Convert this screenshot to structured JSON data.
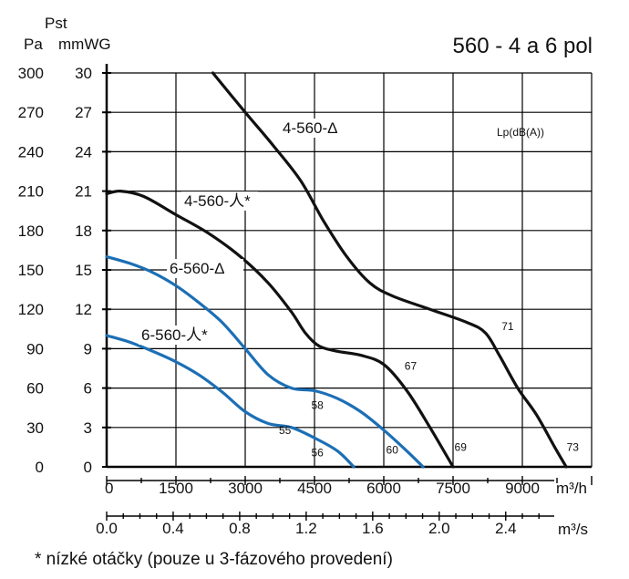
{
  "chart_data": {
    "type": "line",
    "title": "560 - 4 a 6 pol",
    "y_label": "Pst",
    "y_unit_left": "Pa",
    "y_unit_right": "mmWG",
    "x_unit_top": "m³/h",
    "x_unit_bottom": "m³/s",
    "lp_label": "Lp(dB(A))",
    "footnote": "* nízké otáčky (pouze u 3-fázového provedení)",
    "grid": true,
    "xlim": [
      0,
      10500
    ],
    "ylim": [
      0,
      300
    ],
    "y_ticks_pa": [
      "300",
      "270",
      "240",
      "210",
      "180",
      "150",
      "120",
      "90",
      "60",
      "30",
      "0"
    ],
    "y_ticks_mmwg": [
      "30",
      "27",
      "24",
      "21",
      "18",
      "15",
      "12",
      "9",
      "6",
      "3",
      "0"
    ],
    "x_ticks_m3h": [
      "0",
      "1500",
      "3000",
      "4500",
      "6000",
      "7500",
      "9000"
    ],
    "x_ticks_m3s": [
      "0.0",
      "0.4",
      "0.8",
      "1.2",
      "1.6",
      "2.0",
      "2.4"
    ],
    "series": [
      {
        "name": "4-560-Δ",
        "color": "#111111",
        "x": [
          2300,
          3000,
          3600,
          4200,
          4700,
          5200,
          5700,
          6200,
          7000,
          7800,
          8200,
          8500,
          8900,
          9300,
          9700,
          9950
        ],
        "y": [
          300,
          270,
          245,
          218,
          187,
          160,
          140,
          130,
          120,
          110,
          102,
          85,
          60,
          40,
          15,
          0
        ],
        "db_labels": [
          {
            "text": "71",
            "x": 8550,
            "y": 104
          },
          {
            "text": "73",
            "x": 9960,
            "y": 12
          }
        ]
      },
      {
        "name": "4-560-人*",
        "color": "#111111",
        "x": [
          0,
          300,
          800,
          1500,
          2200,
          2900,
          3500,
          4000,
          4300,
          4600,
          5000,
          5500,
          6000,
          6500,
          7000,
          7500
        ],
        "y": [
          208,
          210,
          206,
          192,
          178,
          160,
          140,
          118,
          102,
          92,
          88,
          85,
          78,
          58,
          30,
          0
        ],
        "db_labels": [
          {
            "text": "67",
            "x": 6450,
            "y": 74
          },
          {
            "text": "69",
            "x": 7530,
            "y": 12
          }
        ]
      },
      {
        "name": "6-560-Δ",
        "color": "#1c6fb5",
        "x": [
          0,
          500,
          1000,
          1500,
          2000,
          2500,
          3000,
          3500,
          4000,
          4500,
          5000,
          5500,
          6000,
          6500,
          6850
        ],
        "y": [
          160,
          155,
          148,
          138,
          125,
          110,
          90,
          70,
          60,
          58,
          52,
          42,
          28,
          12,
          0
        ],
        "db_labels": [
          {
            "text": "58",
            "x": 4430,
            "y": 44
          },
          {
            "text": "60",
            "x": 6050,
            "y": 10
          }
        ]
      },
      {
        "name": "6-560-人*",
        "color": "#1c6fb5",
        "x": [
          0,
          500,
          1000,
          1500,
          2000,
          2500,
          3000,
          3500,
          4000,
          4500,
          5000,
          5350
        ],
        "y": [
          100,
          95,
          88,
          80,
          70,
          57,
          42,
          33,
          30,
          22,
          12,
          0
        ],
        "db_labels": [
          {
            "text": "55",
            "x": 3730,
            "y": 25
          },
          {
            "text": "56",
            "x": 4430,
            "y": 8
          }
        ]
      }
    ]
  }
}
